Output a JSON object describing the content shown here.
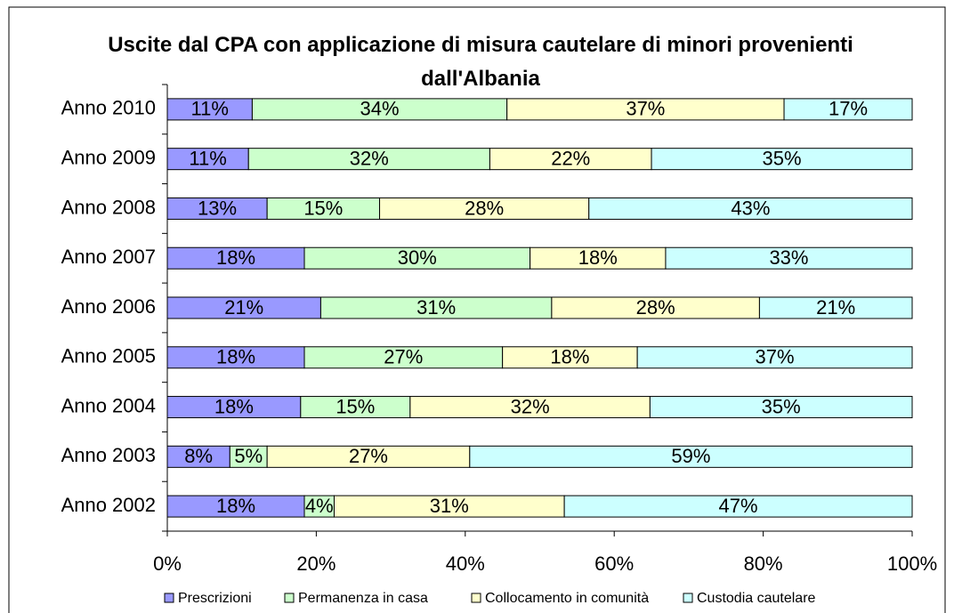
{
  "chart_data": {
    "type": "stacked_bar_horizontal",
    "title": "Uscite dal CPA con applicazione di misura cautelare di minori provenienti dall'Albania",
    "categories": [
      "Anno 2010",
      "Anno 2009",
      "Anno 2008",
      "Anno 2007",
      "Anno 2006",
      "Anno 2005",
      "Anno 2004",
      "Anno 2003",
      "Anno 2002"
    ],
    "series": [
      {
        "name": "Prescrizioni",
        "color": "#9999ff",
        "values": [
          11.4,
          10.9,
          13.4,
          18.4,
          20.6,
          18.4,
          17.9,
          8.4,
          18.4
        ],
        "value_labels": [
          "11%",
          "11%",
          "13%",
          "18%",
          "21%",
          "18%",
          "18%",
          "8%",
          "18%"
        ]
      },
      {
        "name": "Permanenza in casa",
        "color": "#ccffcc",
        "values": [
          34.2,
          32.4,
          15.1,
          30.3,
          31.0,
          26.6,
          14.7,
          5.0,
          4.0
        ],
        "value_labels": [
          "34%",
          "32%",
          "15%",
          "30%",
          "31%",
          "27%",
          "15%",
          "5%",
          "4%"
        ]
      },
      {
        "name": "Collocamento in comunità",
        "color": "#ffffcc",
        "values": [
          37.2,
          21.7,
          28.1,
          18.2,
          27.9,
          18.1,
          32.2,
          27.2,
          30.9
        ],
        "value_labels": [
          "37%",
          "22%",
          "28%",
          "18%",
          "28%",
          "18%",
          "32%",
          "27%",
          "31%"
        ]
      },
      {
        "name": "Custodia cautelare",
        "color": "#ccffff",
        "values": [
          17.2,
          35.0,
          43.4,
          33.1,
          20.5,
          36.9,
          35.2,
          59.4,
          46.7
        ],
        "value_labels": [
          "17%",
          "35%",
          "43%",
          "33%",
          "21%",
          "37%",
          "35%",
          "59%",
          "47%"
        ]
      }
    ],
    "xlim": [
      0,
      100
    ],
    "xticks": [
      {
        "value": 0,
        "label": "0%"
      },
      {
        "value": 20,
        "label": "20%"
      },
      {
        "value": 40,
        "label": "40%"
      },
      {
        "value": 60,
        "label": "60%"
      },
      {
        "value": 80,
        "label": "80%"
      },
      {
        "value": 100,
        "label": "100%"
      }
    ]
  }
}
